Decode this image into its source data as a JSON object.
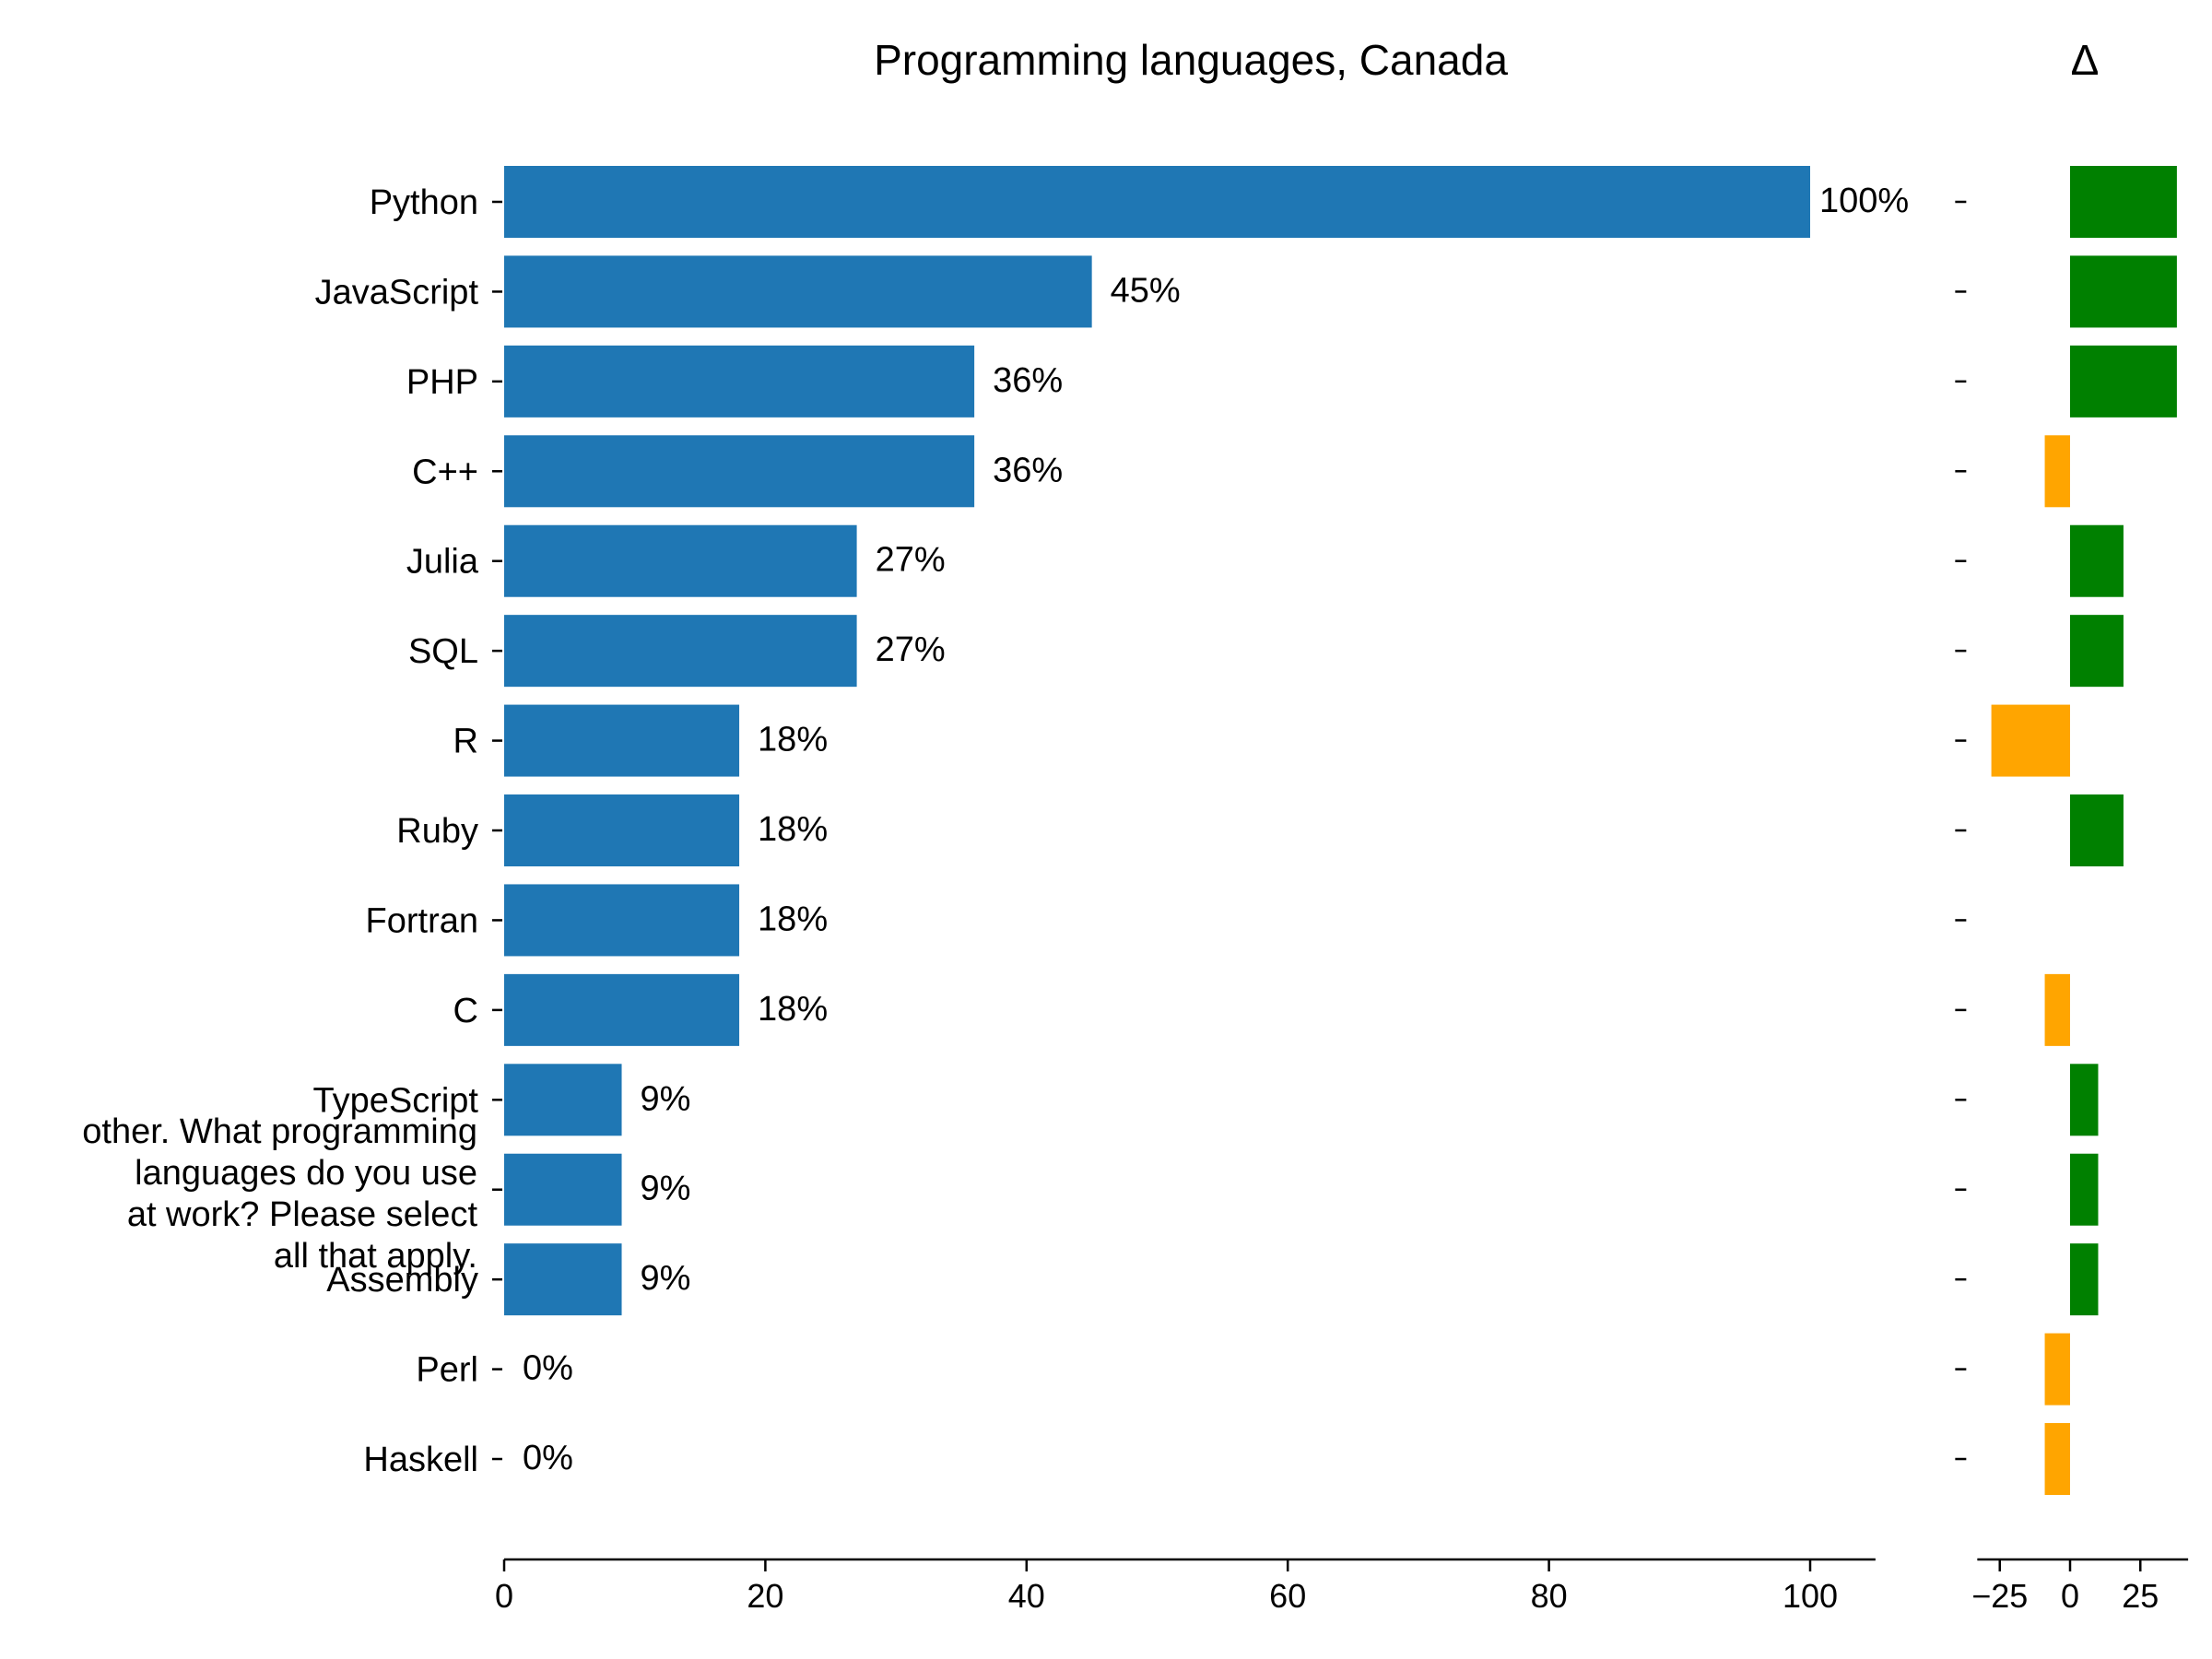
{
  "chart_data": [
    {
      "type": "bar",
      "orientation": "horizontal",
      "title": "Programming languages, Canada",
      "categories": [
        "Python",
        "JavaScript",
        "PHP",
        "C++",
        "Julia",
        "SQL",
        "R",
        "Ruby",
        "Fortran",
        "C",
        "TypeScript",
        "",
        "Assembly",
        "Perl",
        "Haskell"
      ],
      "values": [
        100,
        45,
        36,
        36,
        27,
        27,
        18,
        18,
        18,
        18,
        9,
        9,
        9,
        0,
        0
      ],
      "value_labels": [
        "100%",
        "45%",
        "36%",
        "36%",
        "27%",
        "27%",
        "18%",
        "18%",
        "18%",
        "18%",
        "9%",
        "9%",
        "9%",
        "0%",
        "0%"
      ],
      "xlim": [
        0,
        105
      ],
      "xticks": [
        0,
        20,
        40,
        60,
        80,
        100
      ],
      "xtick_labels": [
        "0",
        "20",
        "40",
        "60",
        "80",
        "100"
      ],
      "color": "#1f77b4",
      "annotation": [
        "other. What programming",
        "languages do you use",
        "at work? Please select",
        "all that apply."
      ]
    },
    {
      "type": "bar",
      "orientation": "horizontal",
      "title": "Δ",
      "categories": [
        "Python",
        "JavaScript",
        "PHP",
        "C++",
        "Julia",
        "SQL",
        "R",
        "Ruby",
        "Fortran",
        "C",
        "TypeScript",
        "",
        "Assembly",
        "Perl",
        "Haskell"
      ],
      "values": [
        38,
        38,
        38,
        -9,
        19,
        19,
        -28,
        19,
        0,
        -9,
        10,
        10,
        10,
        -9,
        -9
      ],
      "xlim": [
        -33,
        42
      ],
      "xticks": [
        -25,
        0,
        25
      ],
      "xtick_labels": [
        "−25",
        "0",
        "25"
      ],
      "positive_color": "#008000",
      "negative_color": "#ffa500"
    }
  ]
}
